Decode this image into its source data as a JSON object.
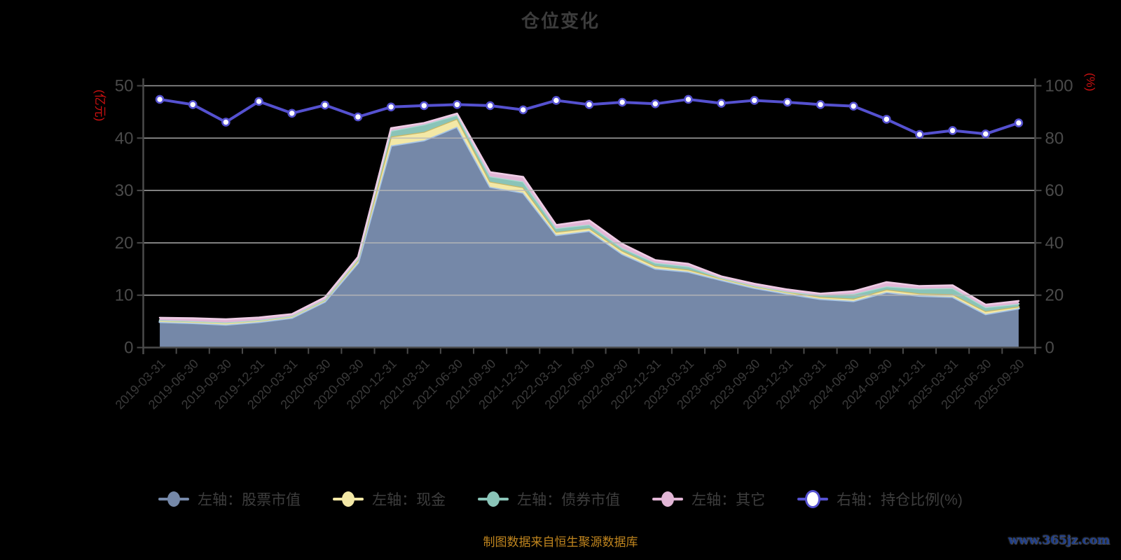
{
  "title": "仓位变化",
  "footer": {
    "source_note": "制图数据来自恒生聚源数据库"
  },
  "watermark": {
    "text": "www.365jz.com"
  },
  "colors": {
    "background": "#000000",
    "title": "#3c3c3c",
    "axis_label": "#4a4a4a",
    "x_label": "#3a3a3a",
    "axis_line": "#4a4a4a",
    "gridline": "#b9b9b9",
    "axis_name_red": "#cc1111",
    "legend_text": "#3e3e3e",
    "footer": "#c0851e",
    "watermark": "#1d3e8c"
  },
  "chart_data": {
    "type": "area",
    "stacked": true,
    "grid": true,
    "legend_position": "bottom",
    "title": "仓位变化",
    "categories": [
      "2019-03-31",
      "2019-06-30",
      "2019-09-30",
      "2019-12-31",
      "2020-03-31",
      "2020-06-30",
      "2020-09-30",
      "2020-12-31",
      "2021-03-31",
      "2021-06-30",
      "2021-09-30",
      "2021-12-31",
      "2022-03-31",
      "2022-06-30",
      "2022-09-30",
      "2022-12-31",
      "2023-03-31",
      "2023-06-30",
      "2023-09-30",
      "2023-12-31",
      "2024-03-31",
      "2024-06-30",
      "2024-09-30",
      "2024-12-31",
      "2025-03-31",
      "2025-06-30",
      "2025-09-30"
    ],
    "axes": {
      "left": {
        "name": "(亿元)",
        "min": 0,
        "max": 50,
        "ticks": [
          0,
          10,
          20,
          30,
          40,
          50
        ]
      },
      "right": {
        "name": "(%)",
        "min": 0,
        "max": 100,
        "ticks": [
          0,
          20,
          40,
          60,
          80,
          100
        ]
      }
    },
    "series": [
      {
        "key": "stock",
        "name": "左轴：股票市值",
        "axis": "left",
        "render": "area",
        "fill": "#7588a8",
        "stroke": "#a6c4e6",
        "values": [
          4.9,
          4.7,
          4.4,
          4.9,
          5.7,
          8.8,
          16.2,
          38.6,
          39.6,
          42.2,
          30.7,
          29.6,
          21.5,
          22.3,
          17.9,
          15.1,
          14.5,
          12.9,
          11.4,
          10.3,
          9.3,
          8.9,
          10.6,
          9.9,
          9.7,
          6.4,
          7.5
        ]
      },
      {
        "key": "cash",
        "name": "左轴：现金",
        "axis": "left",
        "render": "area",
        "fill": "#f3e8a6",
        "stroke": "#c8b766",
        "values": [
          0.3,
          0.3,
          0.35,
          0.3,
          0.3,
          0.3,
          0.5,
          1.7,
          1.6,
          1.5,
          1.0,
          1.0,
          0.6,
          0.5,
          0.6,
          0.5,
          0.4,
          0.3,
          0.3,
          0.3,
          0.4,
          0.45,
          0.5,
          0.45,
          0.5,
          0.55,
          0.35
        ]
      },
      {
        "key": "bond",
        "name": "左轴：债券市值",
        "axis": "left",
        "render": "area",
        "fill": "#8ac4b8",
        "stroke": "#aadcd2",
        "values": [
          0.05,
          0.05,
          0.05,
          0.05,
          0.05,
          0.1,
          0.2,
          1.1,
          1.4,
          0.7,
          1.0,
          1.1,
          0.7,
          0.7,
          0.5,
          0.6,
          0.6,
          0.1,
          0.1,
          0.1,
          0.3,
          0.9,
          0.6,
          0.9,
          1.15,
          0.75,
          0.5
        ]
      },
      {
        "key": "other",
        "name": "左轴：其它",
        "axis": "left",
        "render": "area",
        "fill": "#e2b6d6",
        "stroke": "#efcde6",
        "values": [
          0.45,
          0.55,
          0.6,
          0.5,
          0.35,
          0.4,
          0.4,
          0.5,
          0.3,
          0.3,
          0.8,
          0.9,
          0.6,
          0.8,
          0.8,
          0.5,
          0.5,
          0.3,
          0.4,
          0.4,
          0.3,
          0.5,
          0.8,
          0.5,
          0.55,
          0.5,
          0.55
        ]
      },
      {
        "key": "ratio",
        "name": "右轴：持仓比例(%)",
        "axis": "right",
        "render": "line",
        "color": "#5551d0",
        "marker_fill": "#ffffff",
        "values": [
          94.8,
          92.8,
          86.1,
          94.0,
          89.5,
          92.6,
          88.1,
          91.9,
          92.4,
          92.8,
          92.4,
          90.8,
          94.4,
          92.8,
          93.7,
          93.1,
          94.8,
          93.3,
          94.4,
          93.7,
          92.8,
          92.2,
          87.2,
          81.4,
          82.9,
          81.6,
          85.8
        ]
      }
    ]
  }
}
